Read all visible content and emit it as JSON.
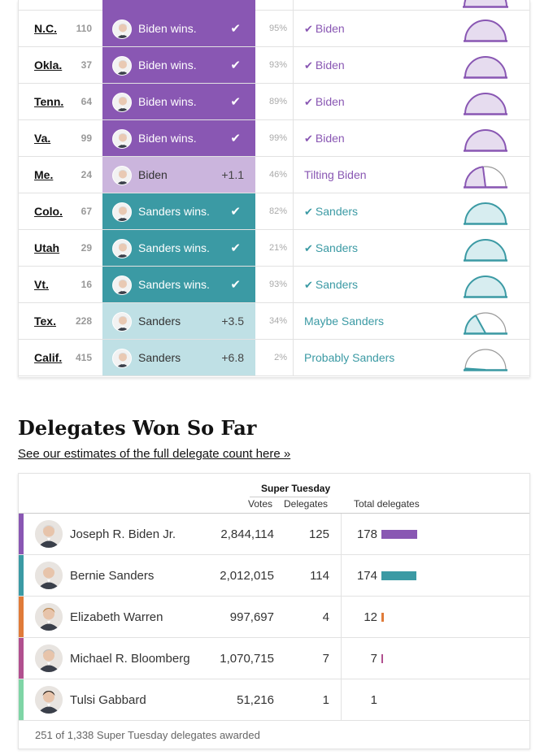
{
  "colors": {
    "biden": "#8957b3",
    "biden_lean": "#cbb5dd",
    "sanders": "#3b9aa4",
    "sanders_lean": "#bfe0e5",
    "warren": "#e07b39",
    "bloomberg": "#b1508f",
    "gabbard": "#7fd5a6"
  },
  "state_results": [
    {
      "state": "N.C.",
      "delegates": "110",
      "candidate": "Biden wins.",
      "status": "biden-win",
      "margin": "",
      "reporting": "95%",
      "call": "Biden",
      "call_check": true,
      "call_class": "biden",
      "reporting_frac": 0.95
    },
    {
      "state": "Okla.",
      "delegates": "37",
      "candidate": "Biden wins.",
      "status": "biden-win",
      "margin": "",
      "reporting": "93%",
      "call": "Biden",
      "call_check": true,
      "call_class": "biden",
      "reporting_frac": 0.93
    },
    {
      "state": "Tenn.",
      "delegates": "64",
      "candidate": "Biden wins.",
      "status": "biden-win",
      "margin": "",
      "reporting": "89%",
      "call": "Biden",
      "call_check": true,
      "call_class": "biden",
      "reporting_frac": 0.89
    },
    {
      "state": "Va.",
      "delegates": "99",
      "candidate": "Biden wins.",
      "status": "biden-win",
      "margin": "",
      "reporting": "99%",
      "call": "Biden",
      "call_check": true,
      "call_class": "biden",
      "reporting_frac": 0.99
    },
    {
      "state": "Me.",
      "delegates": "24",
      "candidate": "Biden",
      "status": "biden-lean",
      "margin": "+1.1",
      "reporting": "46%",
      "call": "Tilting Biden",
      "call_check": false,
      "call_class": "biden",
      "reporting_frac": 0.46
    },
    {
      "state": "Colo.",
      "delegates": "67",
      "candidate": "Sanders wins.",
      "status": "sanders-win",
      "margin": "",
      "reporting": "82%",
      "call": "Sanders",
      "call_check": true,
      "call_class": "sanders",
      "reporting_frac": 0.82
    },
    {
      "state": "Utah",
      "delegates": "29",
      "candidate": "Sanders wins.",
      "status": "sanders-win",
      "margin": "",
      "reporting": "21%",
      "call": "Sanders",
      "call_check": true,
      "call_class": "sanders",
      "reporting_frac": 0.21
    },
    {
      "state": "Vt.",
      "delegates": "16",
      "candidate": "Sanders wins.",
      "status": "sanders-win",
      "margin": "",
      "reporting": "93%",
      "call": "Sanders",
      "call_check": true,
      "call_class": "sanders",
      "reporting_frac": 0.93
    },
    {
      "state": "Tex.",
      "delegates": "228",
      "candidate": "Sanders",
      "status": "sanders-lean",
      "margin": "+3.5",
      "reporting": "34%",
      "call": "Maybe Sanders",
      "call_check": false,
      "call_class": "sanders",
      "reporting_frac": 0.34
    },
    {
      "state": "Calif.",
      "delegates": "415",
      "candidate": "Sanders",
      "status": "sanders-lean",
      "margin": "+6.8",
      "reporting": "2%",
      "call": "Probably Sanders",
      "call_check": false,
      "call_class": "sanders",
      "reporting_frac": 0.02
    }
  ],
  "delegates": {
    "title": "Delegates Won So Far",
    "link": "See our estimates of the full delegate count here »",
    "header": {
      "super_tuesday": "Super Tuesday",
      "votes": "Votes",
      "delegates": "Delegates",
      "total": "Total delegates"
    },
    "candidates": [
      {
        "name": "Joseph R. Biden Jr.",
        "votes": "2,844,114",
        "delegates": "125",
        "total": "178",
        "total_value": 178,
        "color": "#8957b3"
      },
      {
        "name": "Bernie Sanders",
        "votes": "2,012,015",
        "delegates": "114",
        "total": "174",
        "total_value": 174,
        "color": "#3b9aa4"
      },
      {
        "name": "Elizabeth Warren",
        "votes": "997,697",
        "delegates": "4",
        "total": "12",
        "total_value": 12,
        "color": "#e07b39"
      },
      {
        "name": "Michael R. Bloomberg",
        "votes": "1,070,715",
        "delegates": "7",
        "total": "7",
        "total_value": 7,
        "color": "#b1508f"
      },
      {
        "name": "Tulsi Gabbard",
        "votes": "51,216",
        "delegates": "1",
        "total": "1",
        "total_value": 1,
        "color": "#7fd5a6"
      }
    ],
    "footer": "251 of 1,338 Super Tuesday delegates awarded"
  }
}
